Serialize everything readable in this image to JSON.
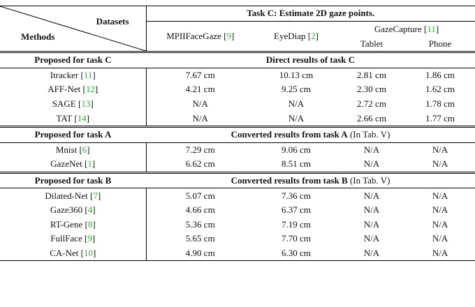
{
  "header": {
    "corner_top": "Datasets",
    "corner_bottom": "Methods",
    "task": "Task C: Estimate 2D gaze points.",
    "columns": [
      {
        "name": "MPIIFaceGaze",
        "cite": "[9]"
      },
      {
        "name": "EyeDiap",
        "cite": "[2]"
      },
      {
        "name": "GazeCapture",
        "cite": "[11]"
      }
    ],
    "subcolumns": [
      "Tablet",
      "Phone"
    ]
  },
  "sections": [
    {
      "title": "Proposed for task C",
      "heading": "Direct results of task C",
      "rows": [
        {
          "method": "Itracker",
          "cite": "[11]",
          "cells": [
            "7.67 cm",
            "10.13 cm",
            "2.81 cm",
            "1.86 cm"
          ]
        },
        {
          "method": "AFF-Net",
          "cite": "[12]",
          "cells": [
            "4.21 cm",
            "9.25 cm",
            "2.30 cm",
            "1.62 cm"
          ]
        },
        {
          "method": "SAGE",
          "cite": "[13]",
          "cells": [
            "N/A",
            "N/A",
            "2.72 cm",
            "1.78 cm"
          ]
        },
        {
          "method": "TAT",
          "cite": "[14]",
          "cells": [
            "N/A",
            "N/A",
            "2.66 cm",
            "1.77 cm"
          ]
        }
      ]
    },
    {
      "title": "Proposed for task A",
      "heading": "Converted results from task A",
      "note": "(In Tab. V)",
      "rows": [
        {
          "method": "Mnist",
          "cite": "[6]",
          "cells": [
            "7.29 cm",
            "9.06 cm",
            "N/A",
            "N/A"
          ]
        },
        {
          "method": "GazeNet",
          "cite": "[1]",
          "cells": [
            "6.62 cm",
            "8.51 cm",
            "N/A",
            "N/A"
          ]
        }
      ]
    },
    {
      "title": "Proposed for task B",
      "heading": "Converted results from task B",
      "note": "(In Tab. V)",
      "rows": [
        {
          "method": "Dilated-Net",
          "cite": "[7]",
          "cells": [
            "5.07 cm",
            "7.36 cm",
            "N/A",
            "N/A"
          ]
        },
        {
          "method": "Gaze360",
          "cite": "[4]",
          "cells": [
            "4.66 cm",
            "6.37 cm",
            "N/A",
            "N/A"
          ]
        },
        {
          "method": "RT-Gene",
          "cite": "[8]",
          "cells": [
            "5.36 cm",
            "7.19 cm",
            "N/A",
            "N/A"
          ]
        },
        {
          "method": "FullFace",
          "cite": "[9]",
          "cells": [
            "5.65 cm",
            "7.70 cm",
            "N/A",
            "N/A"
          ]
        },
        {
          "method": "CA-Net",
          "cite": "[10]",
          "cells": [
            "4.90 cm",
            "6.30 cm",
            "N/A",
            "N/A"
          ]
        }
      ]
    }
  ]
}
